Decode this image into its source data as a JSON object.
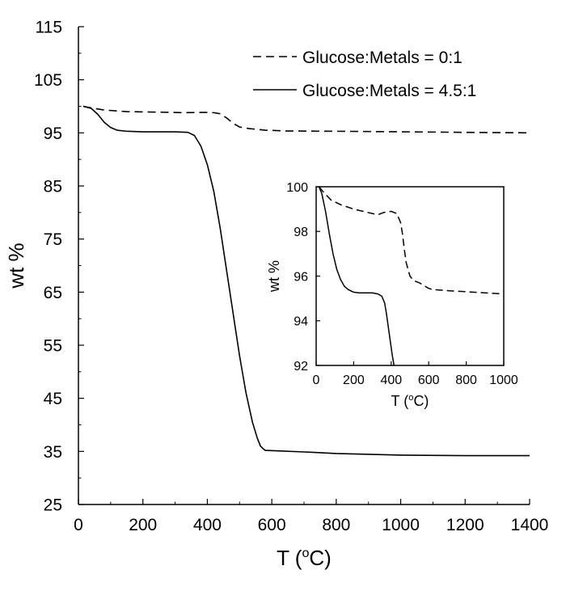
{
  "chart_data": [
    {
      "id": "main",
      "type": "line",
      "title": "",
      "xlabel": "T (",
      "xlabel_sup": "o",
      "xlabel_end": "C)",
      "ylabel": "wt %",
      "xlim": [
        0,
        1400
      ],
      "ylim": [
        25,
        115
      ],
      "xticks": [
        0,
        200,
        400,
        600,
        800,
        1000,
        1200,
        1400
      ],
      "yticks": [
        25,
        35,
        45,
        55,
        65,
        75,
        85,
        95,
        105,
        115
      ],
      "legend_position": "top-right",
      "series": [
        {
          "name": "Glucose:Metals = 0:1",
          "dash": "dashed",
          "x": [
            15,
            40,
            80,
            150,
            250,
            330,
            380,
            400,
            420,
            440,
            460,
            480,
            500,
            530,
            580,
            650,
            800,
            1000,
            1200,
            1400
          ],
          "y": [
            100,
            99.7,
            99.3,
            99.0,
            98.9,
            98.8,
            98.85,
            98.85,
            98.8,
            98.6,
            97.8,
            96.8,
            96.1,
            95.8,
            95.5,
            95.35,
            95.3,
            95.2,
            95.1,
            95.0
          ]
        },
        {
          "name": "Glucose:Metals = 4.5:1",
          "dash": "solid",
          "x": [
            15,
            40,
            60,
            80,
            100,
            120,
            150,
            200,
            250,
            300,
            340,
            360,
            380,
            400,
            420,
            440,
            460,
            480,
            500,
            520,
            540,
            555,
            565,
            575,
            580,
            620,
            700,
            800,
            1000,
            1200,
            1400
          ],
          "y": [
            100,
            99.6,
            98.5,
            97.0,
            96.0,
            95.5,
            95.3,
            95.2,
            95.2,
            95.2,
            95.1,
            94.5,
            92.5,
            89.0,
            84.0,
            77.0,
            69.0,
            61.0,
            53.0,
            46.0,
            40.5,
            37.5,
            36.0,
            35.4,
            35.2,
            35.1,
            34.9,
            34.6,
            34.3,
            34.2,
            34.2
          ]
        }
      ]
    },
    {
      "id": "inset",
      "type": "line",
      "title": "",
      "xlabel": "T (",
      "xlabel_sup": "o",
      "xlabel_end": "C)",
      "ylabel": "wt %",
      "xlim": [
        0,
        1000
      ],
      "ylim": [
        92,
        100
      ],
      "xticks": [
        0,
        200,
        400,
        600,
        800,
        1000
      ],
      "yticks": [
        92,
        94,
        96,
        98,
        100
      ],
      "series": [
        {
          "name": "Glucose:Metals = 0:1",
          "dash": "dashed",
          "x": [
            15,
            40,
            80,
            130,
            200,
            250,
            300,
            330,
            360,
            400,
            430,
            450,
            460,
            470,
            480,
            500,
            520,
            550,
            580,
            600,
            620,
            650,
            700,
            800,
            900,
            1000
          ],
          "y": [
            100,
            99.75,
            99.4,
            99.2,
            99.0,
            98.9,
            98.8,
            98.75,
            98.85,
            98.9,
            98.8,
            98.4,
            97.9,
            97.2,
            96.6,
            96.0,
            95.8,
            95.7,
            95.55,
            95.45,
            95.4,
            95.38,
            95.35,
            95.3,
            95.25,
            95.2
          ]
        },
        {
          "name": "Glucose:Metals = 4.5:1",
          "dash": "solid",
          "x": [
            15,
            30,
            50,
            70,
            90,
            110,
            130,
            150,
            170,
            200,
            230,
            260,
            300,
            330,
            350,
            365,
            375,
            385,
            395,
            405,
            415
          ],
          "y": [
            100,
            99.7,
            98.9,
            97.9,
            97.0,
            96.3,
            95.85,
            95.55,
            95.4,
            95.28,
            95.25,
            95.25,
            95.25,
            95.2,
            95.1,
            94.8,
            94.3,
            93.7,
            93.1,
            92.5,
            92.0
          ]
        }
      ]
    }
  ]
}
